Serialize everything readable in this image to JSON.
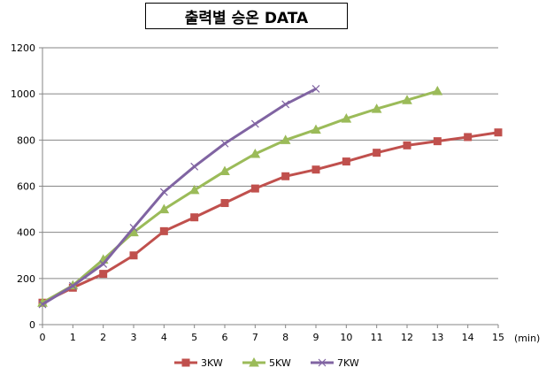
{
  "chart_data": {
    "type": "line",
    "title": "출력별 승온 DATA",
    "xlabel": "(min)",
    "ylabel": "",
    "x_ticks": [
      0,
      1,
      2,
      3,
      4,
      5,
      6,
      7,
      8,
      9,
      10,
      11,
      12,
      13,
      14,
      15
    ],
    "y_ticks": [
      0,
      200,
      400,
      600,
      800,
      1000,
      1200
    ],
    "xlim": [
      0,
      15
    ],
    "ylim": [
      0,
      1200
    ],
    "grid": "horizontal",
    "legend": "bottom",
    "series": [
      {
        "name": "3KW",
        "color": "#c0504d",
        "marker": "square",
        "x": [
          0,
          1,
          2,
          3,
          4,
          5,
          6,
          7,
          8,
          9,
          10,
          11,
          12,
          13,
          14,
          15
        ],
        "values": [
          95,
          160,
          220,
          300,
          405,
          465,
          527,
          590,
          643,
          672,
          707,
          745,
          777,
          795,
          813,
          833
        ]
      },
      {
        "name": "5KW",
        "color": "#9bbb59",
        "marker": "triangle",
        "x": [
          0,
          1,
          2,
          3,
          4,
          5,
          6,
          7,
          8,
          9,
          10,
          11,
          12,
          13
        ],
        "values": [
          95,
          170,
          282,
          400,
          500,
          583,
          665,
          740,
          800,
          845,
          893,
          935,
          973,
          1012
        ]
      },
      {
        "name": "7KW",
        "color": "#8064a2",
        "marker": "x",
        "x": [
          0,
          1,
          2,
          3,
          4,
          5,
          6,
          7,
          8,
          9
        ],
        "values": [
          88,
          168,
          263,
          420,
          575,
          685,
          785,
          870,
          955,
          1022
        ]
      }
    ]
  }
}
